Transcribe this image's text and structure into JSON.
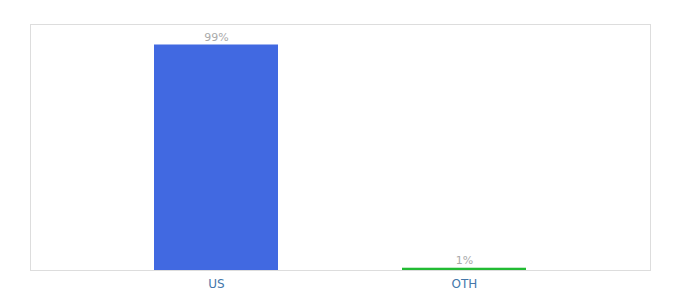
{
  "chart_data": {
    "type": "bar",
    "categories": [
      "US",
      "OTH"
    ],
    "values": [
      99,
      1
    ],
    "colors": [
      "#4169e1",
      "#22bb33"
    ],
    "ylim": [
      0,
      108
    ],
    "data_labels": true,
    "value_labels": [
      "99%",
      "1%"
    ],
    "tick_labels": "x",
    "grid": false
  }
}
